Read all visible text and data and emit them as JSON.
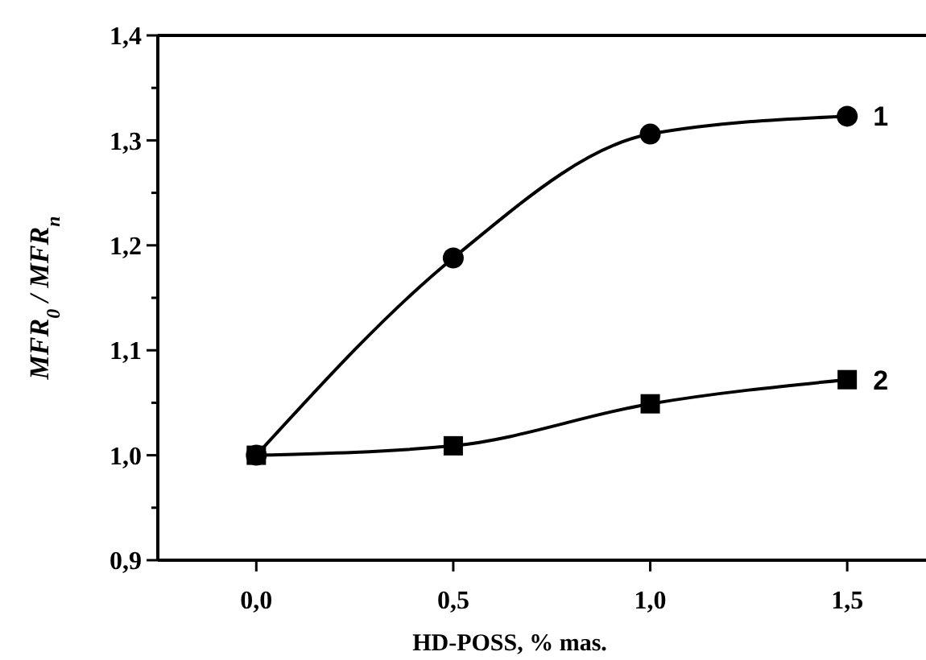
{
  "chart_data": {
    "type": "line",
    "xlabel": "HD-POSS, % mas.",
    "ylabel": "MFR$_{0}$ / MFR$_{n}$",
    "x": [
      0,
      0.5,
      1.0,
      1.5
    ],
    "series": [
      {
        "name": "1",
        "color": "#000000",
        "marker": "circle",
        "values": [
          1.0,
          1.188,
          1.306,
          1.323
        ]
      },
      {
        "name": "2",
        "color": "#000000",
        "marker": "square",
        "values": [
          1.0,
          1.009,
          1.049,
          1.072
        ]
      }
    ],
    "xlim": [
      -0.25,
      1.7
    ],
    "xticks": [
      {
        "value": 0,
        "label": "0,0"
      },
      {
        "value": 0.5,
        "label": "0,5"
      },
      {
        "value": 1.0,
        "label": "1,0"
      },
      {
        "value": 1.5,
        "label": "1,5"
      }
    ],
    "ylim": [
      0.9,
      1.4
    ],
    "yticks": [
      {
        "value": 0.9,
        "label": "0,9"
      },
      {
        "value": 0.95,
        "label": null
      },
      {
        "value": 1.0,
        "label": "1,0"
      },
      {
        "value": 1.05,
        "label": null
      },
      {
        "value": 1.1,
        "label": "1,1"
      },
      {
        "value": 1.15,
        "label": null
      },
      {
        "value": 1.2,
        "label": "1,2"
      },
      {
        "value": 1.25,
        "label": null
      },
      {
        "value": 1.3,
        "label": "1,3"
      },
      {
        "value": 1.35,
        "label": null
      },
      {
        "value": 1.4,
        "label": "1,4"
      }
    ],
    "line_style": "solid"
  }
}
